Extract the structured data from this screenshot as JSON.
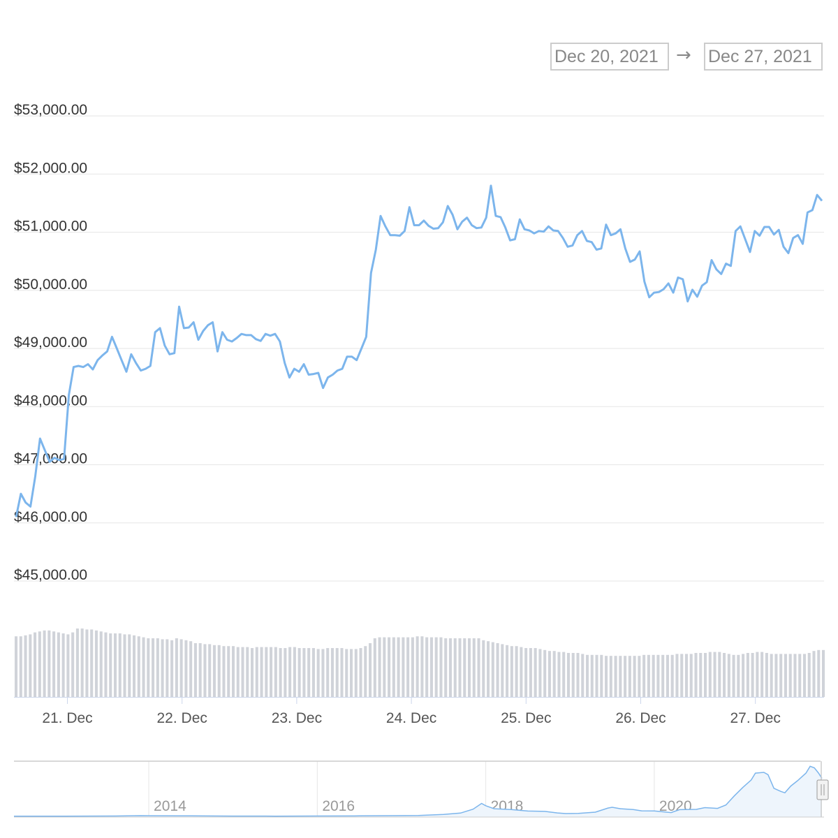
{
  "date_range": {
    "from": "Dec 20, 2021",
    "arrow": "→",
    "to": "Dec 27, 2021"
  },
  "colors": {
    "line": "#7cb5ec",
    "volume": "#d0d3d9",
    "grid": "#e6e6e6",
    "navigator_fill": "#eef5fc"
  },
  "chart_data": [
    {
      "type": "line",
      "series": [
        {
          "values": [
            46100,
            46500,
            46350,
            46280,
            46800,
            47450,
            47250,
            47050,
            47120,
            47080,
            47100,
            48200,
            48680,
            48700,
            48680,
            48730,
            48640,
            48800,
            48880,
            48950,
            49200,
            49000,
            48800,
            48600,
            48900,
            48750,
            48620,
            48650,
            48700,
            49280,
            49350,
            49050,
            48900,
            48920,
            49720,
            49350,
            49360,
            49450,
            49150,
            49300,
            49400,
            49450,
            48950,
            49280,
            49150,
            49120,
            49180,
            49250,
            49230,
            49230,
            49160,
            49130,
            49250,
            49220,
            49250,
            49120,
            48750,
            48500,
            48650,
            48600,
            48730,
            48550,
            48560,
            48580,
            48320,
            48500,
            48550,
            48620,
            48650,
            48860,
            48860,
            48800,
            49000,
            49200,
            50300,
            50700,
            51280,
            51100,
            50950,
            50950,
            50940,
            51020,
            51430,
            51120,
            51120,
            51200,
            51110,
            51060,
            51070,
            51170,
            51450,
            51300,
            51050,
            51180,
            51250,
            51120,
            51070,
            51080,
            51250,
            51800,
            51280,
            51260,
            51080,
            50860,
            50880,
            51220,
            51050,
            51030,
            50980,
            51020,
            51010,
            51100,
            51030,
            51020,
            50900,
            50750,
            50770,
            50950,
            51020,
            50850,
            50830,
            50700,
            50720,
            51130,
            50950,
            50980,
            51050,
            50720,
            50490,
            50530,
            50670,
            50150,
            49880,
            49960,
            49970,
            50020,
            50120,
            49960,
            50220,
            50190,
            49810,
            50010,
            49890,
            50080,
            50140,
            50520,
            50360,
            50280,
            50460,
            50420,
            51020,
            51100,
            50880,
            50660,
            51020,
            50940,
            51090,
            51090,
            50960,
            51040,
            50750,
            50640,
            50900,
            50950,
            50800,
            51340,
            51380,
            51640,
            51540
          ],
          "start": "2021-12-20T13:00",
          "step_hours": 1
        }
      ],
      "ylim": [
        45000,
        53000
      ],
      "ytick_labels": [
        "$53,000.00",
        "$52,000.00",
        "$51,000.00",
        "$50,000.00",
        "$49,000.00",
        "$48,000.00",
        "$47,000.00",
        "$46,000.00",
        "$45,000.00"
      ],
      "ytick_values": [
        53000,
        52000,
        51000,
        50000,
        49000,
        48000,
        47000,
        46000,
        45000
      ],
      "xtick_labels": [
        "21. Dec",
        "22. Dec",
        "23. Dec",
        "24. Dec",
        "25. Dec",
        "26. Dec",
        "27. Dec"
      ],
      "xtick_values": [
        "2021-12-21",
        "2021-12-22",
        "2021-12-23",
        "2021-12-24",
        "2021-12-25",
        "2021-12-26",
        "2021-12-27"
      ],
      "grid": true
    },
    {
      "type": "bar",
      "series": [
        {
          "values": [
            0.62,
            0.62,
            0.63,
            0.64,
            0.66,
            0.67,
            0.68,
            0.68,
            0.67,
            0.66,
            0.65,
            0.64,
            0.66,
            0.7,
            0.7,
            0.69,
            0.69,
            0.68,
            0.67,
            0.66,
            0.65,
            0.65,
            0.65,
            0.64,
            0.64,
            0.63,
            0.62,
            0.61,
            0.6,
            0.6,
            0.6,
            0.59,
            0.59,
            0.58,
            0.6,
            0.59,
            0.58,
            0.57,
            0.55,
            0.55,
            0.54,
            0.54,
            0.53,
            0.53,
            0.52,
            0.52,
            0.52,
            0.51,
            0.51,
            0.51,
            0.5,
            0.51,
            0.51,
            0.51,
            0.51,
            0.51,
            0.5,
            0.5,
            0.51,
            0.51,
            0.5,
            0.5,
            0.5,
            0.5,
            0.49,
            0.49,
            0.5,
            0.5,
            0.5,
            0.5,
            0.49,
            0.49,
            0.49,
            0.5,
            0.52,
            0.55,
            0.6,
            0.61,
            0.61,
            0.61,
            0.61,
            0.61,
            0.61,
            0.61,
            0.61,
            0.62,
            0.62,
            0.61,
            0.61,
            0.61,
            0.61,
            0.6,
            0.6,
            0.6,
            0.6,
            0.6,
            0.6,
            0.6,
            0.6,
            0.58,
            0.57,
            0.56,
            0.55,
            0.54,
            0.53,
            0.52,
            0.52,
            0.51,
            0.5,
            0.5,
            0.5,
            0.49,
            0.48,
            0.47,
            0.47,
            0.46,
            0.46,
            0.45,
            0.45,
            0.45,
            0.44,
            0.43,
            0.43,
            0.43,
            0.43,
            0.42,
            0.42,
            0.42,
            0.42,
            0.42,
            0.42,
            0.42,
            0.42,
            0.43,
            0.43,
            0.43,
            0.43,
            0.43,
            0.43,
            0.43,
            0.44,
            0.44,
            0.44,
            0.44,
            0.45,
            0.45,
            0.45,
            0.46,
            0.46,
            0.46,
            0.45,
            0.44,
            0.43,
            0.43,
            0.44,
            0.45,
            0.45,
            0.46,
            0.46,
            0.45,
            0.44,
            0.44,
            0.44,
            0.44,
            0.44,
            0.44,
            0.44,
            0.44,
            0.45,
            0.47,
            0.48,
            0.48
          ]
        }
      ],
      "label": "volume"
    },
    {
      "type": "area",
      "xtick_labels": [
        "2014",
        "2016",
        "2018",
        "2020"
      ],
      "xlim": [
        2012.4,
        2021.99
      ],
      "series": [
        {
          "points": [
            [
              2012.4,
              300
            ],
            [
              2013.0,
              300
            ],
            [
              2013.6,
              500
            ],
            [
              2013.9,
              900
            ],
            [
              2014.0,
              800
            ],
            [
              2014.5,
              600
            ],
            [
              2015.0,
              350
            ],
            [
              2015.5,
              260
            ],
            [
              2016.0,
              420
            ],
            [
              2016.5,
              650
            ],
            [
              2016.9,
              900
            ],
            [
              2017.2,
              1100
            ],
            [
              2017.5,
              2500
            ],
            [
              2017.7,
              4300
            ],
            [
              2017.85,
              9500
            ],
            [
              2017.95,
              17000
            ],
            [
              2018.0,
              14000
            ],
            [
              2018.1,
              10000
            ],
            [
              2018.3,
              9000
            ],
            [
              2018.5,
              7000
            ],
            [
              2018.7,
              6500
            ],
            [
              2018.85,
              4500
            ],
            [
              2018.95,
              3700
            ],
            [
              2019.1,
              3900
            ],
            [
              2019.3,
              5500
            ],
            [
              2019.45,
              11000
            ],
            [
              2019.5,
              12000
            ],
            [
              2019.6,
              10000
            ],
            [
              2019.75,
              9000
            ],
            [
              2019.85,
              7300
            ],
            [
              2020.0,
              7200
            ],
            [
              2020.2,
              5000
            ],
            [
              2020.3,
              8800
            ],
            [
              2020.5,
              9200
            ],
            [
              2020.6,
              11500
            ],
            [
              2020.75,
              10500
            ],
            [
              2020.85,
              15000
            ],
            [
              2020.95,
              27000
            ],
            [
              2021.05,
              38000
            ],
            [
              2021.15,
              48000
            ],
            [
              2021.2,
              57000
            ],
            [
              2021.3,
              58000
            ],
            [
              2021.35,
              55000
            ],
            [
              2021.42,
              37000
            ],
            [
              2021.5,
              33000
            ],
            [
              2021.55,
              31000
            ],
            [
              2021.62,
              40000
            ],
            [
              2021.7,
              47000
            ],
            [
              2021.8,
              57000
            ],
            [
              2021.85,
              66000
            ],
            [
              2021.9,
              64000
            ],
            [
              2021.95,
              57000
            ],
            [
              2021.99,
              50000
            ]
          ]
        }
      ],
      "ylim": [
        0,
        70000
      ]
    }
  ]
}
